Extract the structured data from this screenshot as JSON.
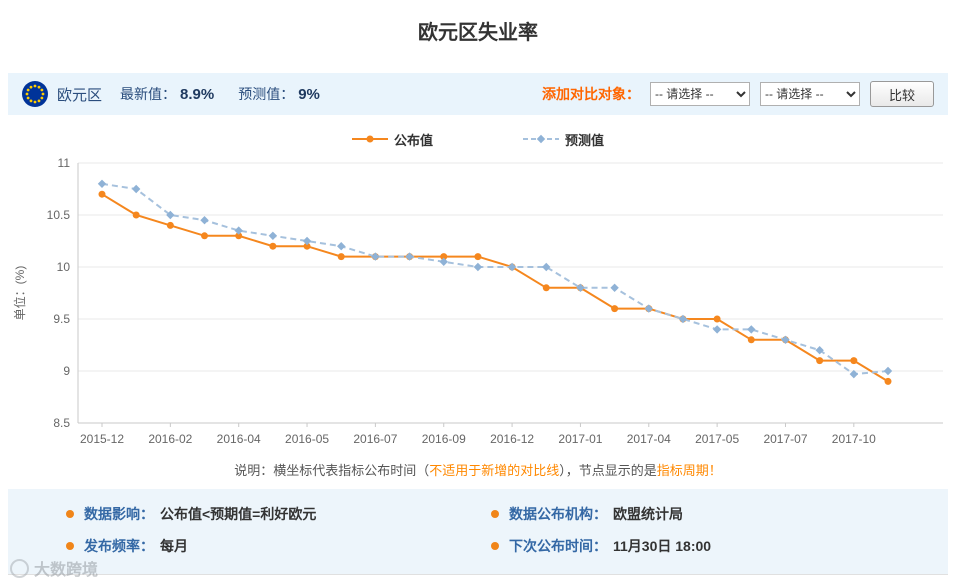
{
  "page": {
    "title": "欧元区失业率"
  },
  "header": {
    "region": "欧元区",
    "latest_label": "最新值：",
    "latest_value": "8.9%",
    "forecast_label": "预测值：",
    "forecast_value": "9%",
    "compare_label": "添加对比对象：",
    "select_placeholder": "-- 请选择 --",
    "compare_button": "比较"
  },
  "chart_data": {
    "type": "line",
    "title": "欧元区失业率",
    "ylabel": "单位：(%)",
    "ylim": [
      8.5,
      11
    ],
    "yticks": [
      11,
      10.5,
      10,
      9.5,
      9,
      8.5
    ],
    "grid": "horizontal",
    "legend_position": "top",
    "categories": [
      "2015-12",
      "",
      "2016-02",
      "",
      "2016-04",
      "",
      "2016-05",
      "",
      "2016-07",
      "",
      "2016-09",
      "",
      "2016-12",
      "",
      "2017-01",
      "",
      "2017-04",
      "",
      "2017-05",
      "",
      "2017-07",
      "",
      "2017-10",
      ""
    ],
    "series": [
      {
        "name": "公布值",
        "color": "#f5871e",
        "marker_fill": "#f5871e",
        "style": "solid",
        "marker": "circle",
        "values": [
          10.7,
          10.5,
          10.4,
          10.3,
          10.3,
          10.2,
          10.2,
          10.1,
          10.1,
          10.1,
          10.1,
          10.1,
          10.0,
          9.8,
          9.8,
          9.6,
          9.6,
          9.5,
          9.5,
          9.3,
          9.3,
          9.1,
          9.1,
          8.9
        ]
      },
      {
        "name": "预测值",
        "color": "#a6c1dd",
        "marker_fill": "#8fb2d6",
        "style": "dashed",
        "marker": "diamond",
        "values": [
          10.8,
          10.75,
          10.5,
          10.45,
          10.35,
          10.3,
          10.25,
          10.2,
          10.1,
          10.1,
          10.05,
          10.0,
          10.0,
          10.0,
          9.8,
          9.8,
          9.6,
          9.5,
          9.4,
          9.4,
          9.3,
          9.2,
          8.97,
          9.0
        ]
      }
    ]
  },
  "note": {
    "segments": [
      {
        "text": "说明：横坐标代表指标公布时间（"
      },
      {
        "text": "不适用于新增的对比线"
      },
      {
        "text": "），节点显示的是"
      },
      {
        "text": "指标周期！"
      }
    ]
  },
  "info": {
    "items": [
      {
        "label": "数据影响：",
        "value": "公布值<预期值=利好欧元"
      },
      {
        "label": "数据公布机构：",
        "value": "欧盟统计局"
      },
      {
        "label": "发布频率：",
        "value": "每月"
      },
      {
        "label": "下次公布时间：",
        "value": "11月30日 18:00"
      }
    ]
  },
  "watermark": "大数跨境"
}
